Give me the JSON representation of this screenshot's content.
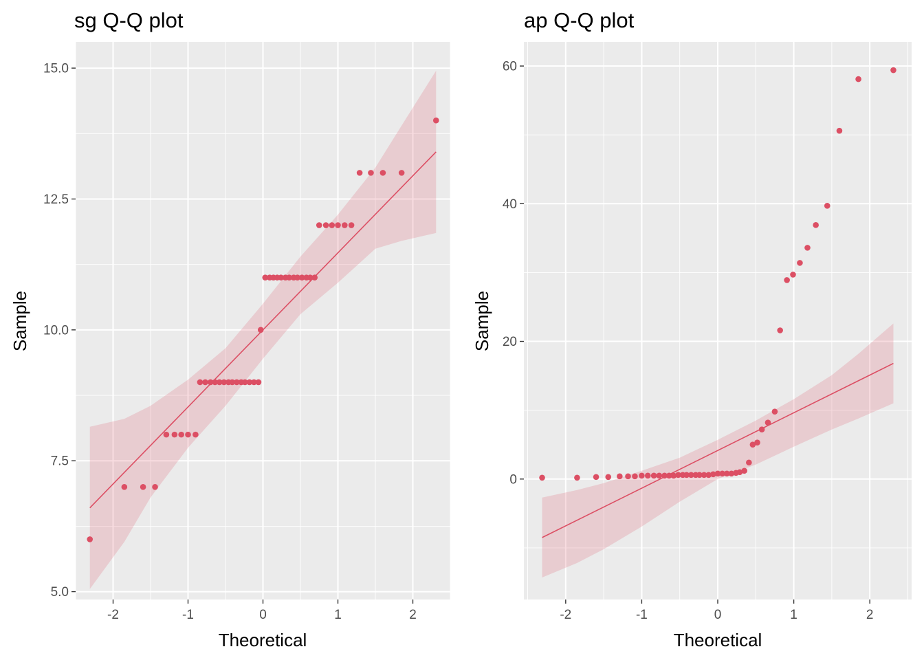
{
  "colors": {
    "point": "#dc4f64",
    "line": "#dc4f64",
    "band": "#dc4f64",
    "panel_bg": "#ebebeb",
    "grid": "#ffffff",
    "tick": "#333333",
    "tick_text": "#4d4d4d"
  },
  "chart_data": [
    {
      "type": "scatter",
      "title": "sg Q-Q plot",
      "xlabel": "Theoretical",
      "ylabel": "Sample",
      "xlim": [
        -2.5,
        2.5
      ],
      "ylim": [
        4.85,
        15.5
      ],
      "x_ticks": [
        -2,
        -1,
        0,
        1,
        2
      ],
      "x_tick_labels": [
        "-2",
        "-1",
        "0",
        "1",
        "2"
      ],
      "y_ticks": [
        5.0,
        7.5,
        10.0,
        12.5,
        15.0
      ],
      "y_tick_labels": [
        "5.0",
        "7.5",
        "10.0",
        "12.5",
        "15.0"
      ],
      "grid": true,
      "points": [
        [
          -2.31,
          6
        ],
        [
          -1.85,
          7
        ],
        [
          -1.6,
          7
        ],
        [
          -1.44,
          7
        ],
        [
          -1.29,
          8
        ],
        [
          -1.18,
          8
        ],
        [
          -1.09,
          8
        ],
        [
          -1.0,
          8
        ],
        [
          -0.9,
          8
        ],
        [
          -0.84,
          9
        ],
        [
          -0.77,
          9
        ],
        [
          -0.7,
          9
        ],
        [
          -0.64,
          9
        ],
        [
          -0.58,
          9
        ],
        [
          -0.52,
          9
        ],
        [
          -0.46,
          9
        ],
        [
          -0.41,
          9
        ],
        [
          -0.35,
          9
        ],
        [
          -0.29,
          9
        ],
        [
          -0.24,
          9
        ],
        [
          -0.18,
          9
        ],
        [
          -0.12,
          9
        ],
        [
          -0.06,
          9
        ],
        [
          -0.03,
          10
        ],
        [
          0.03,
          11
        ],
        [
          0.09,
          11
        ],
        [
          0.14,
          11
        ],
        [
          0.19,
          11
        ],
        [
          0.24,
          11
        ],
        [
          0.3,
          11
        ],
        [
          0.35,
          11
        ],
        [
          0.41,
          11
        ],
        [
          0.46,
          11
        ],
        [
          0.52,
          11
        ],
        [
          0.58,
          11
        ],
        [
          0.63,
          11
        ],
        [
          0.69,
          11
        ],
        [
          0.75,
          12
        ],
        [
          0.84,
          12
        ],
        [
          0.92,
          12
        ],
        [
          1.0,
          12
        ],
        [
          1.09,
          12
        ],
        [
          1.18,
          12
        ],
        [
          1.29,
          13
        ],
        [
          1.44,
          13
        ],
        [
          1.6,
          13
        ],
        [
          1.85,
          13
        ],
        [
          2.31,
          14
        ]
      ],
      "fit_line": [
        [
          -2.31,
          6.6
        ],
        [
          2.31,
          13.4
        ]
      ],
      "confidence_band": {
        "x": [
          -2.31,
          -1.85,
          -1.5,
          -1.0,
          -0.5,
          0.0,
          0.5,
          1.0,
          1.5,
          1.85,
          2.31
        ],
        "upper": [
          8.15,
          8.3,
          8.55,
          9.05,
          9.65,
          10.5,
          11.4,
          12.2,
          13.1,
          13.9,
          14.95
        ],
        "lower": [
          5.05,
          5.95,
          6.8,
          7.75,
          8.55,
          9.45,
          10.3,
          10.9,
          11.55,
          11.7,
          11.85
        ]
      }
    },
    {
      "type": "scatter",
      "title": "ap Q-Q plot",
      "xlabel": "Theoretical",
      "ylabel": "Sample",
      "xlim": [
        -2.55,
        2.55
      ],
      "ylim": [
        -17.5,
        63.5
      ],
      "x_ticks": [
        -2,
        -1,
        0,
        1,
        2
      ],
      "x_tick_labels": [
        "-2",
        "-1",
        "0",
        "1",
        "2"
      ],
      "y_ticks": [
        0,
        20,
        40,
        60
      ],
      "y_tick_labels": [
        "0",
        "20",
        "40",
        "60"
      ],
      "grid": true,
      "points": [
        [
          -2.31,
          0.2
        ],
        [
          -1.85,
          0.2
        ],
        [
          -1.6,
          0.3
        ],
        [
          -1.44,
          0.3
        ],
        [
          -1.29,
          0.4
        ],
        [
          -1.18,
          0.4
        ],
        [
          -1.09,
          0.4
        ],
        [
          -1.0,
          0.5
        ],
        [
          -0.92,
          0.5
        ],
        [
          -0.84,
          0.5
        ],
        [
          -0.77,
          0.5
        ],
        [
          -0.7,
          0.5
        ],
        [
          -0.64,
          0.5
        ],
        [
          -0.58,
          0.5
        ],
        [
          -0.52,
          0.6
        ],
        [
          -0.46,
          0.6
        ],
        [
          -0.41,
          0.6
        ],
        [
          -0.35,
          0.6
        ],
        [
          -0.29,
          0.6
        ],
        [
          -0.24,
          0.6
        ],
        [
          -0.18,
          0.6
        ],
        [
          -0.12,
          0.6
        ],
        [
          -0.06,
          0.7
        ],
        [
          0.0,
          0.8
        ],
        [
          0.06,
          0.8
        ],
        [
          0.12,
          0.8
        ],
        [
          0.18,
          0.8
        ],
        [
          0.24,
          0.9
        ],
        [
          0.29,
          1.0
        ],
        [
          0.35,
          1.2
        ],
        [
          0.41,
          2.4
        ],
        [
          0.46,
          5.0
        ],
        [
          0.52,
          5.3
        ],
        [
          0.58,
          7.2
        ],
        [
          0.66,
          8.2
        ],
        [
          0.75,
          9.8
        ],
        [
          0.82,
          21.6
        ],
        [
          0.91,
          28.9
        ],
        [
          0.99,
          29.7
        ],
        [
          1.08,
          31.4
        ],
        [
          1.18,
          33.6
        ],
        [
          1.29,
          36.9
        ],
        [
          1.44,
          39.7
        ],
        [
          1.6,
          50.6
        ],
        [
          1.85,
          58.1
        ],
        [
          2.31,
          59.4
        ]
      ],
      "fit_line": [
        [
          -2.31,
          -8.5
        ],
        [
          2.31,
          16.8
        ]
      ],
      "confidence_band": {
        "x": [
          -2.31,
          -1.85,
          -1.5,
          -1.0,
          -0.5,
          0.0,
          0.5,
          1.0,
          1.5,
          1.85,
          2.31
        ],
        "upper": [
          -2.7,
          -1.6,
          -0.6,
          1.2,
          3.1,
          5.7,
          8.5,
          11.6,
          15.1,
          18.2,
          22.6
        ],
        "lower": [
          -14.3,
          -12.2,
          -10.2,
          -6.9,
          -3.3,
          0.0,
          2.1,
          4.7,
          7.2,
          8.8,
          11.0
        ]
      }
    }
  ]
}
